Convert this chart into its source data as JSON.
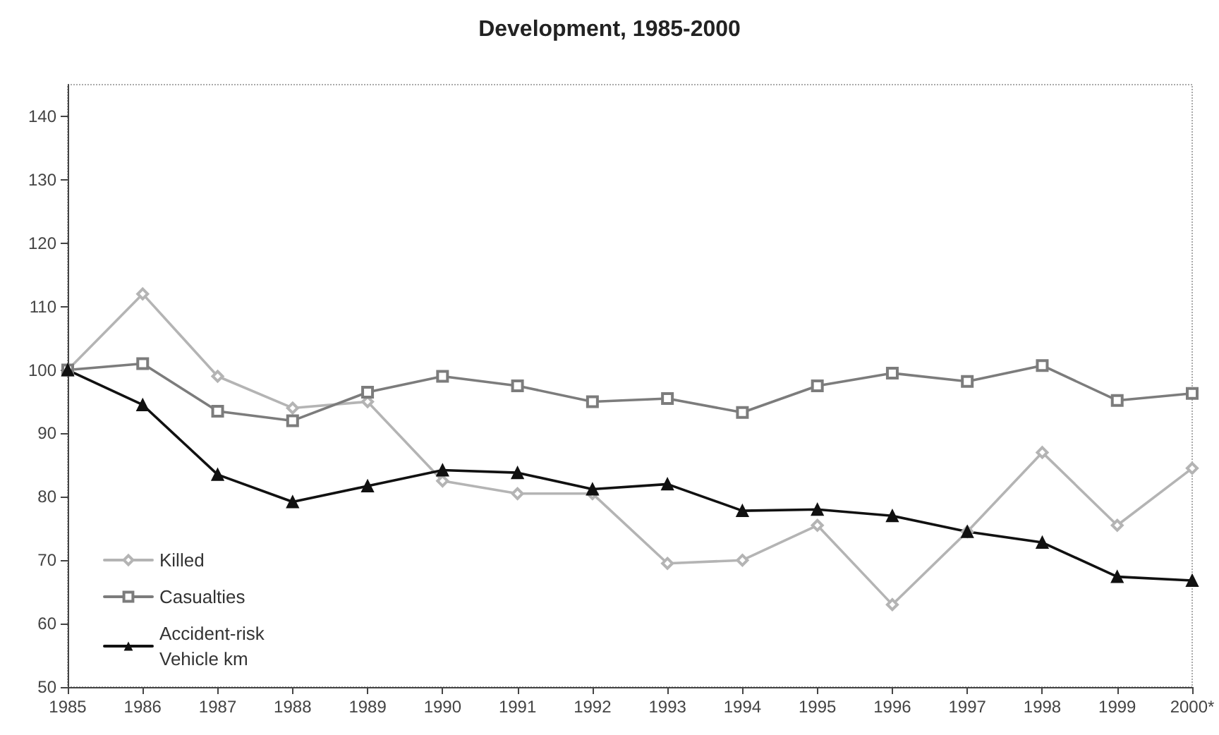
{
  "chart_data": {
    "type": "line",
    "title": "Development, 1985-2000",
    "categories": [
      "1985",
      "1986",
      "1987",
      "1988",
      "1989",
      "1990",
      "1991",
      "1992",
      "1993",
      "1994",
      "1995",
      "1996",
      "1997",
      "1998",
      "1999",
      "2000*"
    ],
    "series": [
      {
        "name": "Killed",
        "color": "#b4b4b4",
        "marker": "diamond",
        "values": [
          100,
          112,
          99,
          94,
          95,
          82.5,
          80.5,
          80.5,
          69.5,
          70,
          75.5,
          63,
          74.5,
          87,
          75.5,
          84.5
        ]
      },
      {
        "name": "Casualties",
        "color": "#7c7c7c",
        "marker": "square",
        "values": [
          100,
          101,
          93.5,
          92,
          96.5,
          99,
          97.5,
          95,
          95.5,
          93.3,
          97.5,
          99.5,
          98.2,
          100.7,
          95.2,
          96.3
        ]
      },
      {
        "name": "Accident-risk Vehicle km",
        "color": "#111111",
        "marker": "triangle",
        "values": [
          100,
          94.5,
          83.5,
          79.2,
          81.7,
          84.2,
          83.8,
          81.2,
          82,
          77.8,
          78,
          77,
          74.5,
          72.8,
          67.4,
          66.8
        ]
      }
    ],
    "ylim": [
      50,
      145
    ],
    "yticks": [
      50,
      60,
      70,
      80,
      90,
      100,
      110,
      120,
      130,
      140
    ],
    "grid": false,
    "legend": "bottom left",
    "line_style": "solid"
  }
}
